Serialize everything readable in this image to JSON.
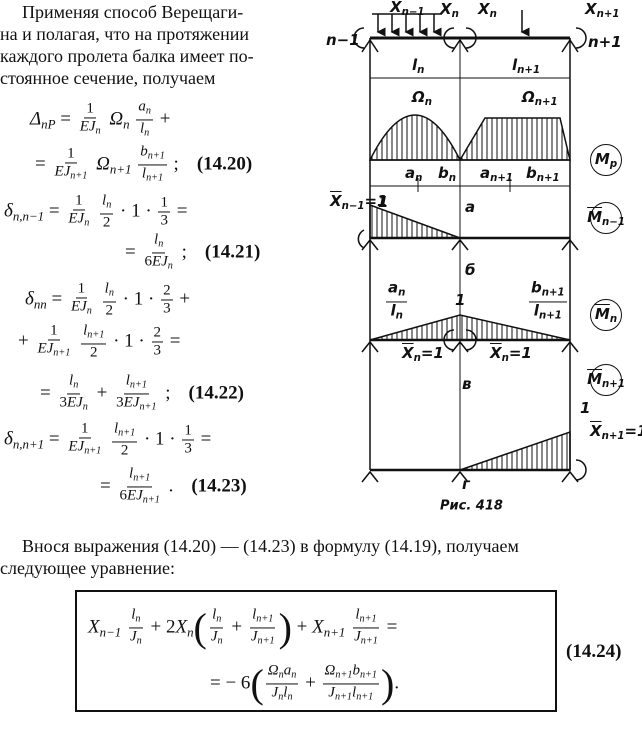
{
  "intro_lines": [
    "Применяя способ Верещаги-",
    "на и полагая, что на протяжении",
    "каждого пролета балка имеет по-",
    "стоянное сечение, получаем"
  ],
  "equations": [
    {
      "parts": [
        {
          "b": "Δ",
          "s": "nP"
        },
        " = ",
        {
          "f": [
            [
              "1"
            ],
            [
              {
                "b": "EJ",
                "s": "n"
              }
            ]
          ]
        },
        " ",
        {
          "b": "Ω",
          "s": "n"
        },
        " ",
        {
          "f": [
            [
              {
                "b": "a",
                "s": "n"
              }
            ],
            [
              {
                "b": "l",
                "s": "n"
              }
            ]
          ]
        },
        " +"
      ]
    },
    {
      "parts": [
        "= ",
        {
          "f": [
            [
              "1"
            ],
            [
              {
                "b": "EJ",
                "s": "n+1"
              }
            ]
          ]
        },
        " ",
        {
          "b": "Ω",
          "s": "n+1"
        },
        " ",
        {
          "f": [
            [
              {
                "b": "b",
                "s": "n+1"
              }
            ],
            [
              {
                "b": "l",
                "s": "n+1"
              }
            ]
          ]
        },
        " ;"
      ],
      "number": "(14.20)"
    },
    {
      "parts": [
        {
          "b": "δ",
          "s": "n,n−1"
        },
        " = ",
        {
          "f": [
            [
              "1"
            ],
            [
              {
                "b": "EJ",
                "s": "n"
              }
            ]
          ]
        },
        " ",
        {
          "f": [
            [
              {
                "b": "l",
                "s": "n"
              }
            ],
            [
              "2"
            ]
          ]
        },
        " · 1 · ",
        {
          "f": [
            [
              "1"
            ],
            [
              "3"
            ]
          ]
        },
        " ="
      ]
    },
    {
      "parts": [
        "= ",
        {
          "f": [
            [
              {
                "b": "l",
                "s": "n"
              }
            ],
            [
              "6",
              {
                "b": "EJ",
                "s": "n"
              }
            ]
          ]
        },
        " ;"
      ],
      "number": "(14.21)"
    },
    {
      "parts": [
        {
          "b": "δ",
          "s": "nn"
        },
        " = ",
        {
          "f": [
            [
              "1"
            ],
            [
              {
                "b": "EJ",
                "s": "n"
              }
            ]
          ]
        },
        " ",
        {
          "f": [
            [
              {
                "b": "l",
                "s": "n"
              }
            ],
            [
              "2"
            ]
          ]
        },
        " · 1 · ",
        {
          "f": [
            [
              "2"
            ],
            [
              "3"
            ]
          ]
        },
        " +"
      ]
    },
    {
      "parts": [
        "+ ",
        {
          "f": [
            [
              "1"
            ],
            [
              {
                "b": "EJ",
                "s": "n+1"
              }
            ]
          ]
        },
        " ",
        {
          "f": [
            [
              {
                "b": "l",
                "s": "n+1"
              }
            ],
            [
              "2"
            ]
          ]
        },
        " · 1 · ",
        {
          "f": [
            [
              "2"
            ],
            [
              "3"
            ]
          ]
        },
        " ="
      ]
    },
    {
      "parts": [
        "= ",
        {
          "f": [
            [
              {
                "b": "l",
                "s": "n"
              }
            ],
            [
              "3",
              {
                "b": "EJ",
                "s": "n"
              }
            ]
          ]
        },
        " + ",
        {
          "f": [
            [
              {
                "b": "l",
                "s": "n+1"
              }
            ],
            [
              "3",
              {
                "b": "EJ",
                "s": "n+1"
              }
            ]
          ]
        },
        " ;"
      ],
      "number": "(14.22)"
    },
    {
      "parts": [
        {
          "b": "δ",
          "s": "n,n+1"
        },
        " = ",
        {
          "f": [
            [
              "1"
            ],
            [
              {
                "b": "EJ",
                "s": "n+1"
              }
            ]
          ]
        },
        " ",
        {
          "f": [
            [
              {
                "b": "l",
                "s": "n+1"
              }
            ],
            [
              "2"
            ]
          ]
        },
        " · 1 · ",
        {
          "f": [
            [
              "1"
            ],
            [
              "3"
            ]
          ]
        },
        " ="
      ]
    },
    {
      "parts": [
        "= ",
        {
          "f": [
            [
              {
                "b": "l",
                "s": "n+1"
              }
            ],
            [
              "6",
              {
                "b": "EJ",
                "s": "n+1"
              }
            ]
          ]
        },
        " ."
      ],
      "number": "(14.23)"
    }
  ],
  "diagram": {
    "labels": [
      [
        {
          "b": "X",
          "s": "n−1"
        }
      ],
      [
        {
          "b": "X",
          "s": "n"
        }
      ],
      [
        {
          "b": "X",
          "s": "n"
        }
      ],
      [
        {
          "b": "X",
          "s": "n+1"
        }
      ],
      [
        "n−1"
      ],
      [
        "n+1"
      ],
      [
        {
          "b": "l",
          "s": "n"
        }
      ],
      [
        {
          "b": "l",
          "s": "n+1"
        }
      ],
      [
        {
          "b": "Ω",
          "s": "n"
        }
      ],
      [
        {
          "b": "Ω",
          "s": "n+1"
        }
      ],
      [
        {
          "b": "a",
          "s": "n"
        }
      ],
      [
        {
          "b": "b",
          "s": "n"
        }
      ],
      [
        {
          "b": "a",
          "s": "n+1"
        }
      ],
      [
        {
          "b": "b",
          "s": "n+1"
        }
      ],
      [
        "а"
      ],
      [
        {
          "b": "X",
          "s": "n−1",
          "over": true
        },
        "=1"
      ],
      [
        "1"
      ],
      [
        "б"
      ],
      [
        {
          "f": [
            [
              {
                "b": "a",
                "s": "n"
              }
            ],
            [
              {
                "b": "l",
                "s": "n"
              }
            ]
          ]
        }
      ],
      [
        "1"
      ],
      [
        {
          "f": [
            [
              {
                "b": "b",
                "s": "n+1"
              }
            ],
            [
              {
                "b": "l",
                "s": "n+1"
              }
            ]
          ]
        }
      ],
      [
        {
          "b": "X",
          "s": "n",
          "over": true
        },
        "=1"
      ],
      [
        {
          "b": "X",
          "s": "n",
          "over": true
        },
        "=1"
      ],
      [
        "в"
      ],
      [
        "1"
      ],
      [
        {
          "b": "X",
          "s": "n+1",
          "over": true
        },
        "=1"
      ],
      [
        "г"
      ]
    ],
    "moment_labels": [
      [
        {
          "b": "M",
          "s": "p"
        }
      ],
      [
        {
          "b": "M",
          "s": "n−1",
          "over": true
        }
      ],
      [
        {
          "b": "M",
          "s": "n",
          "over": true
        }
      ],
      [
        {
          "b": "M",
          "s": "n+1",
          "over": true
        }
      ]
    ],
    "caption": "Рис. 418"
  },
  "paragraph_lines": [
    "Внося выражения (14.20) — (14.23) в формулу (14.19), получаем",
    "следующее  уравнение:"
  ],
  "boxed_equation": {
    "lines": [
      [
        {
          "b": "X",
          "s": "n−1"
        },
        " ",
        {
          "f": [
            [
              {
                "b": "l",
                "s": "n"
              }
            ],
            [
              {
                "b": "J",
                "s": "n"
              }
            ]
          ]
        },
        " + 2",
        {
          "b": "X",
          "s": "n"
        },
        "(",
        {
          "f": [
            [
              {
                "b": "l",
                "s": "n"
              }
            ],
            [
              {
                "b": "J",
                "s": "n"
              }
            ]
          ]
        },
        " + ",
        {
          "f": [
            [
              {
                "b": "l",
                "s": "n+1"
              }
            ],
            [
              {
                "b": "J",
                "s": "n+1"
              }
            ]
          ]
        },
        ")",
        " + ",
        {
          "b": "X",
          "s": "n+1"
        },
        " ",
        {
          "f": [
            [
              {
                "b": "l",
                "s": "n+1"
              }
            ],
            [
              {
                "b": "J",
                "s": "n+1"
              }
            ]
          ]
        },
        " ="
      ],
      [
        "= − 6",
        "(",
        {
          "f": [
            [
              {
                "b": "Ω",
                "s": "n"
              },
              {
                "b": "a",
                "s": "n"
              }
            ],
            [
              {
                "b": "J",
                "s": "n"
              },
              {
                "b": "l",
                "s": "n"
              }
            ]
          ]
        },
        " + ",
        {
          "f": [
            [
              {
                "b": "Ω",
                "s": "n+1"
              },
              {
                "b": "b",
                "s": "n+1"
              }
            ],
            [
              {
                "b": "J",
                "s": "n+1"
              },
              {
                "b": "l",
                "s": "n+1"
              }
            ]
          ]
        },
        ")",
        "."
      ]
    ],
    "number": "(14.24)"
  }
}
